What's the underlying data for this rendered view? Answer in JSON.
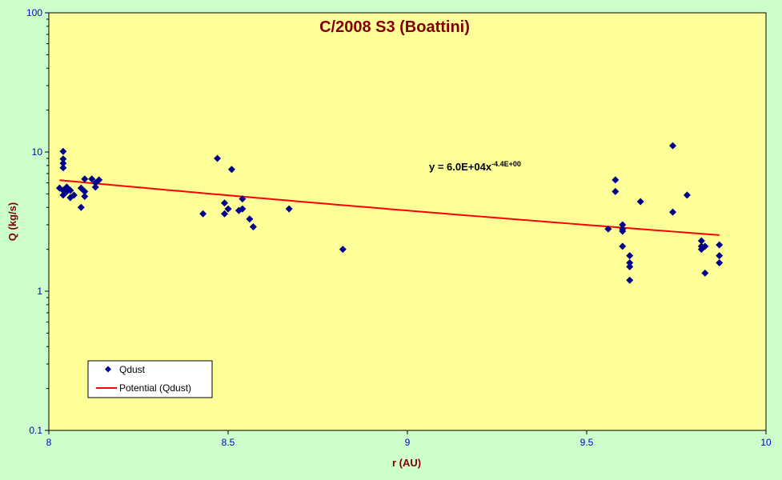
{
  "chart_data": {
    "type": "scatter",
    "title": "C/2008 S3 (Boattini)",
    "xlabel": "r (AU)",
    "ylabel": "Q (kg/s)",
    "x_range": [
      8,
      10
    ],
    "y_range": [
      0.1,
      100
    ],
    "y_scale": "log",
    "x_ticks": [
      "8",
      "8.5",
      "9",
      "9.5",
      "10"
    ],
    "y_ticks": [
      "0.1",
      "1",
      "10",
      "100"
    ],
    "grid": false,
    "legend_position": "bottom-left",
    "plot_background": "#ffff99",
    "page_background": "#ccffcc",
    "series": [
      {
        "name": "Qdust",
        "marker": "diamond",
        "color": "#00008b",
        "points": [
          [
            8.04,
            10.1
          ],
          [
            8.04,
            8.9
          ],
          [
            8.04,
            8.3
          ],
          [
            8.04,
            7.7
          ],
          [
            8.03,
            5.5
          ],
          [
            8.04,
            5.3
          ],
          [
            8.05,
            5.6
          ],
          [
            8.05,
            5.2
          ],
          [
            8.06,
            5.3
          ],
          [
            8.04,
            4.9
          ],
          [
            8.06,
            4.7
          ],
          [
            8.07,
            4.9
          ],
          [
            8.09,
            5.5
          ],
          [
            8.09,
            4.0
          ],
          [
            8.1,
            5.2
          ],
          [
            8.1,
            4.8
          ],
          [
            8.1,
            6.4
          ],
          [
            8.12,
            6.4
          ],
          [
            8.13,
            6.0
          ],
          [
            8.13,
            5.6
          ],
          [
            8.14,
            6.3
          ],
          [
            8.43,
            3.6
          ],
          [
            8.47,
            9.0
          ],
          [
            8.49,
            3.6
          ],
          [
            8.49,
            4.3
          ],
          [
            8.5,
            3.9
          ],
          [
            8.51,
            7.5
          ],
          [
            8.53,
            3.8
          ],
          [
            8.54,
            3.9
          ],
          [
            8.54,
            4.6
          ],
          [
            8.56,
            3.3
          ],
          [
            8.57,
            2.9
          ],
          [
            8.67,
            3.9
          ],
          [
            8.82,
            2.0
          ],
          [
            9.56,
            2.8
          ],
          [
            9.58,
            6.3
          ],
          [
            9.58,
            5.2
          ],
          [
            9.6,
            3.0
          ],
          [
            9.6,
            2.8
          ],
          [
            9.6,
            2.7
          ],
          [
            9.6,
            2.1
          ],
          [
            9.62,
            1.8
          ],
          [
            9.62,
            1.6
          ],
          [
            9.62,
            1.5
          ],
          [
            9.62,
            1.2
          ],
          [
            9.65,
            4.4
          ],
          [
            9.74,
            3.7
          ],
          [
            9.74,
            11.1
          ],
          [
            9.78,
            4.9
          ],
          [
            9.82,
            2.3
          ],
          [
            9.82,
            2.1
          ],
          [
            9.82,
            2.0
          ],
          [
            9.83,
            2.1
          ],
          [
            9.83,
            1.35
          ],
          [
            9.87,
            2.15
          ],
          [
            9.87,
            1.8
          ],
          [
            9.87,
            1.6
          ]
        ]
      }
    ],
    "trendline": {
      "name": "Potential (Qdust)",
      "type": "power",
      "color": "#ff0000",
      "coefficient": 60000,
      "exponent": -4.4,
      "x_from": 8.03,
      "x_to": 9.87,
      "equation_text": "y = 6.0E+04x",
      "equation_superscript": "-4.4E+00"
    }
  }
}
